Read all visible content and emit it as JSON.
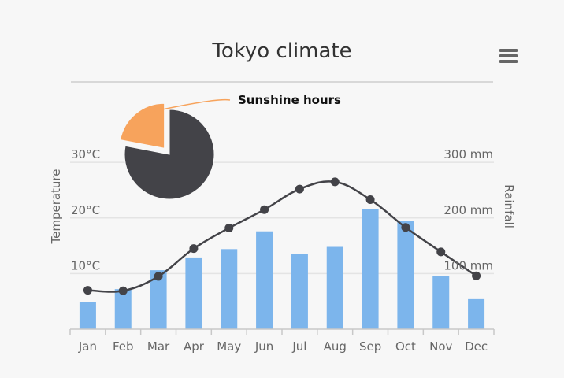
{
  "chart_data": [
    {
      "type": "bar+line",
      "title": "Tokyo climate",
      "categories": [
        "Jan",
        "Feb",
        "Mar",
        "Apr",
        "May",
        "Jun",
        "Jul",
        "Aug",
        "Sep",
        "Oct",
        "Nov",
        "Dec"
      ],
      "y_left": {
        "label": "Temperature",
        "ticks": [
          "10°C",
          "20°C",
          "30°C"
        ],
        "range": [
          0,
          33
        ]
      },
      "y_right": {
        "label": "Rainfall",
        "ticks": [
          "100 mm",
          "200 mm",
          "300 mm"
        ],
        "range": [
          0,
          330
        ]
      },
      "series": [
        {
          "type": "bar",
          "axis": "right",
          "values": [
            49,
            72,
            106,
            129,
            144,
            176,
            135,
            148,
            216,
            194,
            95,
            54
          ]
        },
        {
          "type": "line",
          "axis": "left",
          "values": [
            7.0,
            6.9,
            9.5,
            14.5,
            18.2,
            21.5,
            25.2,
            26.5,
            23.3,
            18.3,
            13.9,
            9.6
          ]
        }
      ],
      "colors": {
        "bars": "#7cb5ec",
        "line": "#434348"
      },
      "grid": true
    },
    {
      "type": "pie",
      "title": "",
      "label": "Sunshine hours",
      "values": [
        78,
        22
      ],
      "colors": [
        "#434348",
        "#f7a35c"
      ],
      "highlighted_slice": 1
    }
  ],
  "menu": {
    "icon": "hamburger-menu-icon"
  }
}
